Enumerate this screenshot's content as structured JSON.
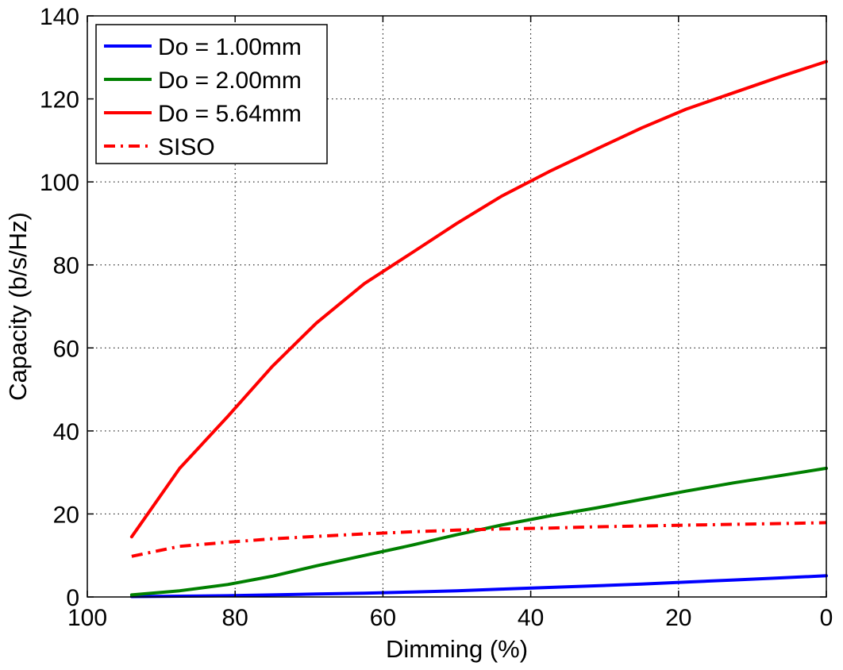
{
  "chart_data": {
    "type": "line",
    "title": "",
    "xlabel": "Dimming (%)",
    "ylabel": "Capacity (b/s/Hz)",
    "xlim": [
      100,
      0
    ],
    "ylim": [
      0,
      140
    ],
    "x_reversed": true,
    "grid": true,
    "legend_position": "top-left",
    "xticks": [
      "100",
      "80",
      "60",
      "40",
      "20",
      "0"
    ],
    "yticks": [
      "0",
      "20",
      "40",
      "60",
      "80",
      "100",
      "120",
      "140"
    ],
    "x": [
      94,
      87.5,
      81,
      75,
      69,
      62.5,
      56,
      50,
      44,
      37.5,
      31,
      25,
      19,
      12.5,
      6,
      0
    ],
    "series": [
      {
        "name": "Do = 1.00mm",
        "color": "#0000ff",
        "style": "solid",
        "values": [
          0.1,
          0.2,
          0.3,
          0.5,
          0.7,
          0.9,
          1.2,
          1.5,
          1.9,
          2.3,
          2.7,
          3.1,
          3.6,
          4.1,
          4.6,
          5.1
        ]
      },
      {
        "name": "Do = 2.00mm",
        "color": "#008000",
        "style": "solid",
        "values": [
          0.5,
          1.5,
          3.0,
          5.0,
          7.5,
          10.0,
          12.5,
          15.0,
          17.3,
          19.5,
          21.5,
          23.5,
          25.5,
          27.5,
          29.3,
          31.0
        ]
      },
      {
        "name": "Do = 5.64mm",
        "color": "#ff0000",
        "style": "solid",
        "values": [
          14.5,
          31.0,
          43.5,
          55.5,
          66.0,
          75.5,
          83.0,
          90.0,
          96.5,
          102.5,
          108.0,
          113.0,
          117.5,
          121.5,
          125.5,
          129.0
        ]
      },
      {
        "name": "SISO",
        "color": "#ff0000",
        "style": "dashdot",
        "values": [
          9.8,
          12.2,
          13.2,
          14.0,
          14.6,
          15.2,
          15.7,
          16.1,
          16.4,
          16.6,
          16.9,
          17.1,
          17.3,
          17.5,
          17.7,
          17.9
        ]
      }
    ]
  }
}
